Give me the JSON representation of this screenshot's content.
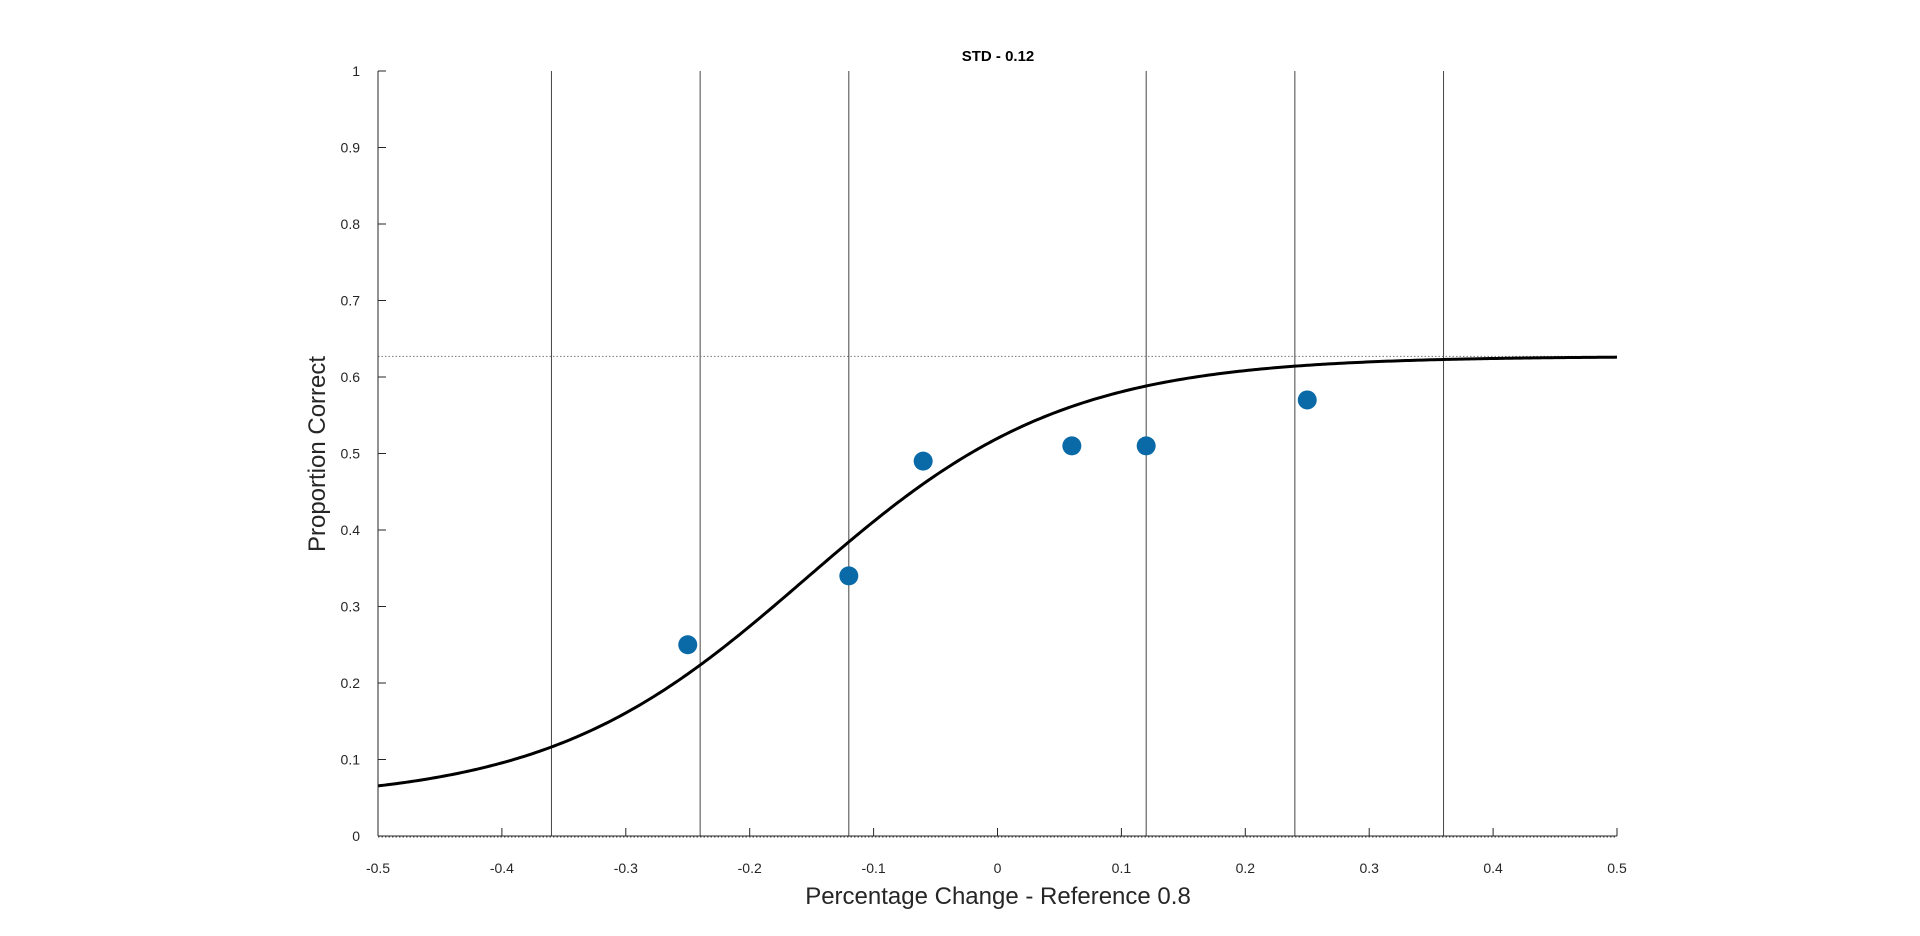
{
  "chart_data": {
    "type": "scatter",
    "title": "STD - 0.12",
    "xlabel": "Percentage Change - Reference 0.8",
    "ylabel": "Proportion Correct",
    "xlim": [
      -0.5,
      0.5
    ],
    "ylim": [
      0,
      1
    ],
    "xticks": [
      -0.5,
      -0.4,
      -0.3,
      -0.2,
      -0.1,
      0,
      0.1,
      0.2,
      0.3,
      0.4,
      0.5
    ],
    "xtick_labels": [
      "-0.5",
      "-0.4",
      "-0.3",
      "-0.2",
      "-0.1",
      "0",
      "0.1",
      "0.2",
      "0.3",
      "0.4",
      "0.5"
    ],
    "yticks": [
      0,
      0.1,
      0.2,
      0.3,
      0.4,
      0.5,
      0.6,
      0.7,
      0.8,
      0.9,
      1
    ],
    "ytick_labels": [
      "0",
      "0.1",
      "0.2",
      "0.3",
      "0.4",
      "0.5",
      "0.6",
      "0.7",
      "0.8",
      "0.9",
      "1"
    ],
    "grid": false,
    "points": {
      "x": [
        -0.25,
        -0.12,
        -0.06,
        0.06,
        0.12,
        0.25
      ],
      "y": [
        0.25,
        0.34,
        0.49,
        0.51,
        0.51,
        0.57
      ],
      "color": "#0a6aa8"
    },
    "fit_curve": {
      "description": "logistic fit",
      "lower": 0.045,
      "upper": 0.627,
      "midpoint": -0.155,
      "slope": 9.6,
      "color": "#000000"
    },
    "reference_lines": {
      "vertical_x": [
        -0.36,
        -0.24,
        -0.12,
        0.12,
        0.24,
        0.36
      ],
      "horizontal_dotted_y": 0.627,
      "color": "#444444"
    }
  }
}
